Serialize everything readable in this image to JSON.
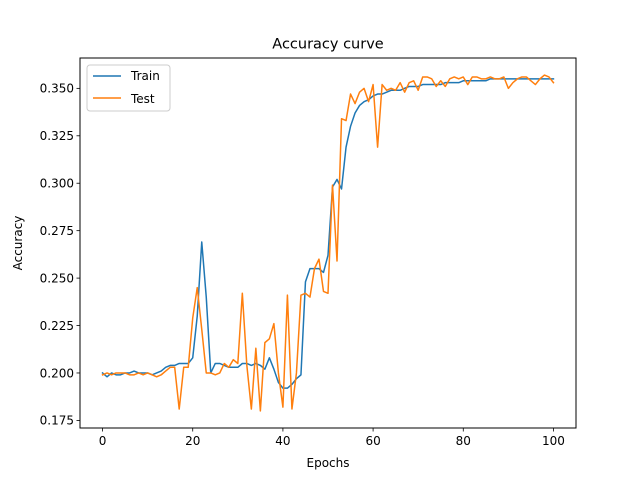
{
  "chart_data": {
    "type": "line",
    "title": "Accuracy curve",
    "xlabel": "Epochs",
    "ylabel": "Accuracy",
    "xlim": [
      -5,
      105
    ],
    "ylim": [
      0.171,
      0.366
    ],
    "xticks": [
      0,
      20,
      40,
      60,
      80,
      100
    ],
    "yticks": [
      0.175,
      0.2,
      0.225,
      0.25,
      0.275,
      0.3,
      0.325,
      0.35
    ],
    "xtick_labels": [
      "0",
      "20",
      "40",
      "60",
      "80",
      "100"
    ],
    "ytick_labels": [
      "0.175",
      "0.200",
      "0.225",
      "0.250",
      "0.275",
      "0.300",
      "0.325",
      "0.350"
    ],
    "grid": false,
    "legend_position": "upper-left",
    "x": [
      0,
      1,
      2,
      3,
      4,
      5,
      6,
      7,
      8,
      9,
      10,
      11,
      12,
      13,
      14,
      15,
      16,
      17,
      18,
      19,
      20,
      21,
      22,
      23,
      24,
      25,
      26,
      27,
      28,
      29,
      30,
      31,
      32,
      33,
      34,
      35,
      36,
      37,
      38,
      39,
      40,
      41,
      42,
      43,
      44,
      45,
      46,
      47,
      48,
      49,
      50,
      51,
      52,
      53,
      54,
      55,
      56,
      57,
      58,
      59,
      60,
      61,
      62,
      63,
      64,
      65,
      66,
      67,
      68,
      69,
      70,
      71,
      72,
      73,
      74,
      75,
      76,
      77,
      78,
      79,
      80,
      81,
      82,
      83,
      84,
      85,
      86,
      87,
      88,
      89,
      90,
      91,
      92,
      93,
      94,
      95,
      96,
      97,
      98,
      99,
      100
    ],
    "series": [
      {
        "name": "Train",
        "color": "#1f77b4",
        "values": [
          0.2,
          0.198,
          0.2,
          0.199,
          0.199,
          0.2,
          0.2,
          0.201,
          0.2,
          0.2,
          0.2,
          0.199,
          0.2,
          0.201,
          0.203,
          0.204,
          0.204,
          0.205,
          0.205,
          0.205,
          0.208,
          0.23,
          0.269,
          0.24,
          0.2,
          0.205,
          0.205,
          0.204,
          0.203,
          0.203,
          0.203,
          0.205,
          0.205,
          0.204,
          0.205,
          0.204,
          0.202,
          0.208,
          0.202,
          0.195,
          0.192,
          0.192,
          0.194,
          0.197,
          0.199,
          0.248,
          0.255,
          0.255,
          0.255,
          0.253,
          0.262,
          0.298,
          0.302,
          0.297,
          0.319,
          0.33,
          0.337,
          0.341,
          0.343,
          0.344,
          0.346,
          0.347,
          0.347,
          0.348,
          0.349,
          0.349,
          0.349,
          0.35,
          0.351,
          0.351,
          0.351,
          0.352,
          0.352,
          0.352,
          0.352,
          0.352,
          0.353,
          0.353,
          0.353,
          0.353,
          0.354,
          0.354,
          0.354,
          0.354,
          0.354,
          0.354,
          0.355,
          0.355,
          0.355,
          0.355,
          0.355,
          0.355,
          0.355,
          0.355,
          0.355,
          0.355,
          0.355,
          0.355,
          0.355,
          0.355,
          0.355
        ]
      },
      {
        "name": "Test",
        "color": "#ff7f0e",
        "values": [
          0.199,
          0.2,
          0.199,
          0.2,
          0.2,
          0.2,
          0.199,
          0.199,
          0.2,
          0.199,
          0.2,
          0.199,
          0.198,
          0.199,
          0.201,
          0.203,
          0.203,
          0.181,
          0.203,
          0.203,
          0.229,
          0.245,
          0.223,
          0.2,
          0.2,
          0.199,
          0.2,
          0.205,
          0.203,
          0.207,
          0.205,
          0.242,
          0.204,
          0.181,
          0.213,
          0.18,
          0.216,
          0.218,
          0.226,
          0.2,
          0.182,
          0.241,
          0.181,
          0.2,
          0.241,
          0.242,
          0.24,
          0.255,
          0.26,
          0.243,
          0.242,
          0.299,
          0.259,
          0.334,
          0.333,
          0.347,
          0.342,
          0.348,
          0.35,
          0.343,
          0.352,
          0.319,
          0.352,
          0.349,
          0.35,
          0.349,
          0.353,
          0.348,
          0.353,
          0.354,
          0.349,
          0.356,
          0.356,
          0.355,
          0.351,
          0.354,
          0.351,
          0.355,
          0.356,
          0.355,
          0.356,
          0.352,
          0.356,
          0.356,
          0.355,
          0.355,
          0.356,
          0.355,
          0.355,
          0.356,
          0.35,
          0.353,
          0.355,
          0.356,
          0.356,
          0.354,
          0.352,
          0.355,
          0.357,
          0.356,
          0.353
        ]
      }
    ]
  }
}
